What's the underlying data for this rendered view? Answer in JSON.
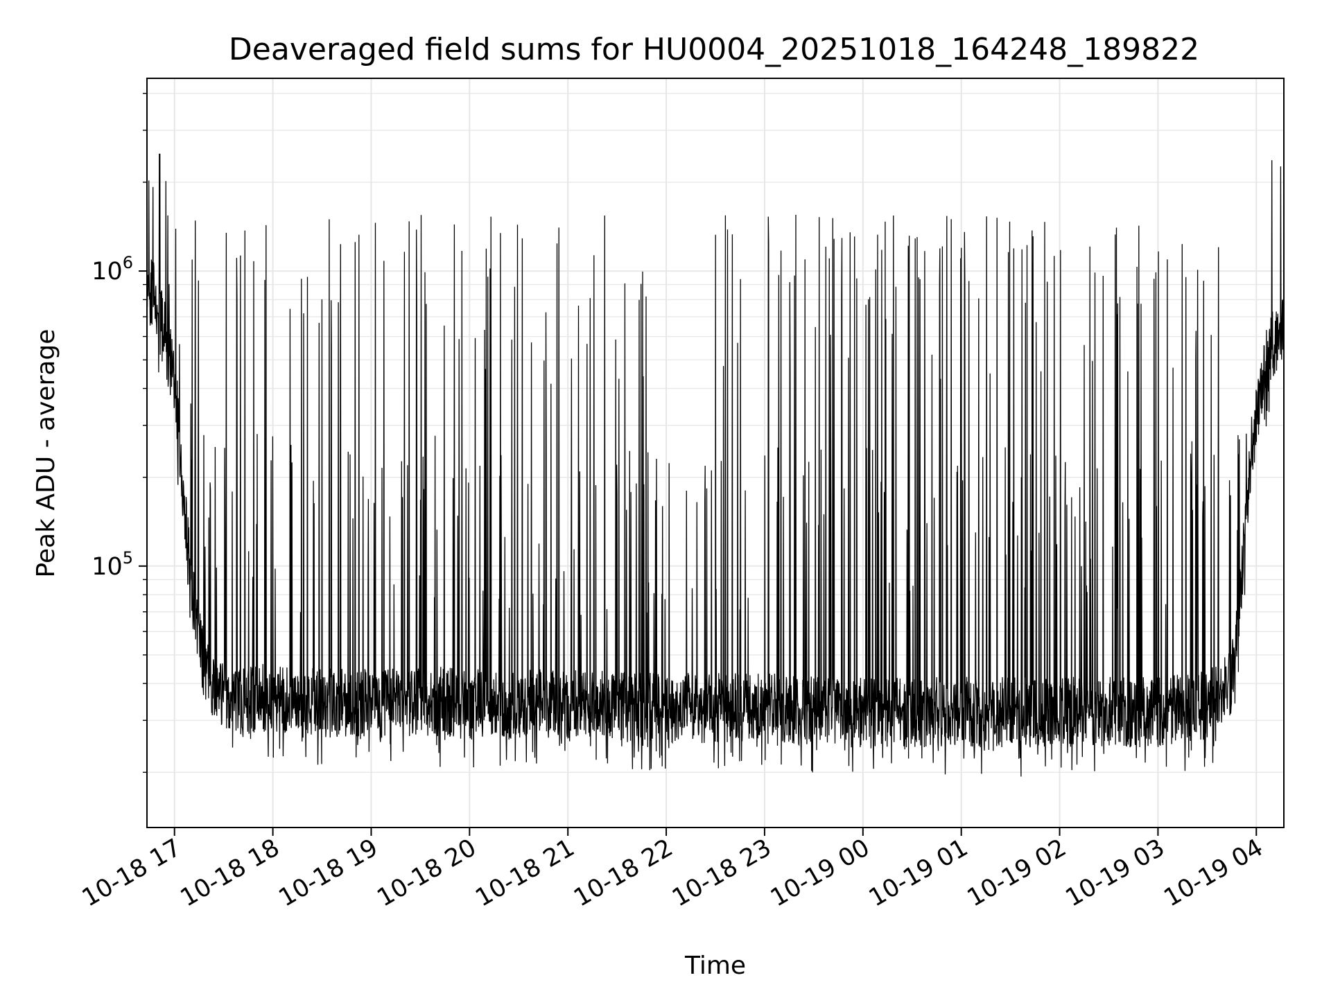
{
  "chart_data": {
    "type": "line",
    "title": "Deaveraged field sums for HU0004_20251018_164248_189822",
    "xlabel": "Time",
    "ylabel": "Peak ADU - average",
    "yscale": "log",
    "grid": true,
    "x_range_hours": [
      -0.28,
      11.28
    ],
    "ylim": [
      13000,
      4500000
    ],
    "x_ticks": [
      {
        "label": "10-18 17",
        "hours": 0
      },
      {
        "label": "10-18 18",
        "hours": 1
      },
      {
        "label": "10-18 19",
        "hours": 2
      },
      {
        "label": "10-18 20",
        "hours": 3
      },
      {
        "label": "10-18 21",
        "hours": 4
      },
      {
        "label": "10-18 22",
        "hours": 5
      },
      {
        "label": "10-18 23",
        "hours": 6
      },
      {
        "label": "10-19 00",
        "hours": 7
      },
      {
        "label": "10-19 01",
        "hours": 8
      },
      {
        "label": "10-19 02",
        "hours": 9
      },
      {
        "label": "10-19 03",
        "hours": 10
      },
      {
        "label": "10-19 04",
        "hours": 11
      }
    ],
    "y_ticks": [
      {
        "base": "10",
        "exp": "5",
        "value": 100000
      },
      {
        "base": "10",
        "exp": "6",
        "value": 1000000
      }
    ],
    "series": [
      {
        "name": "field sums",
        "color": "#000000",
        "profile": {
          "hours": [
            -0.28,
            -0.2,
            -0.1,
            0.0,
            0.06,
            0.12,
            0.18,
            0.25,
            0.35,
            0.5,
            1.0,
            2.0,
            2.5,
            3.0,
            4.0,
            5.0,
            6.0,
            7.0,
            8.0,
            9.0,
            9.5,
            10.0,
            10.5,
            10.75,
            10.85,
            10.95,
            11.05,
            11.15,
            11.28
          ],
          "baseline": [
            900000,
            800000,
            600000,
            420000,
            250000,
            140000,
            80000,
            55000,
            42000,
            37000,
            35000,
            34000,
            35000,
            34000,
            34000,
            33000,
            33000,
            32000,
            32000,
            32000,
            32000,
            32000,
            34000,
            40000,
            90000,
            250000,
            420000,
            550000,
            650000
          ]
        },
        "spike_peak_typical": 1350000,
        "spike_peak_max": 2500000
      }
    ]
  }
}
